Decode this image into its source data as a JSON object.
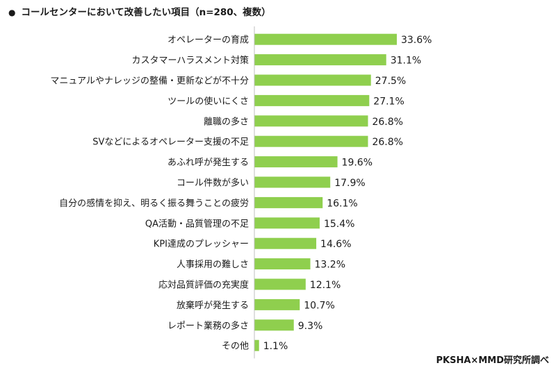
{
  "title": "コールセンターにおいて改善したい項目（n=280、複数）",
  "source": "PKSHA×MMD研究所調べ",
  "colors": {
    "bar": "#8fcf4e",
    "axis": "#bfbfbf",
    "text": "#1a1a1a"
  },
  "chart_data": {
    "type": "bar",
    "orientation": "horizontal",
    "categories": [
      "オペレーターの育成",
      "カスタマーハラスメント対策",
      "マニュアルやナレッジの整備・更新などが不十分",
      "ツールの使いにくさ",
      "離職の多さ",
      "SVなどによるオペレーター支援の不足",
      "あふれ呼が発生する",
      "コール件数が多い",
      "自分の感情を抑え、明るく振る舞うことの疲労",
      "QA活動・品質管理の不足",
      "KPI達成のプレッシャー",
      "人事採用の難しさ",
      "応対品質評価の充実度",
      "放棄呼が発生する",
      "レポート業務の多さ",
      "その他"
    ],
    "values": [
      33.6,
      31.1,
      27.5,
      27.1,
      26.8,
      26.8,
      19.6,
      17.9,
      16.1,
      15.4,
      14.6,
      13.2,
      12.1,
      10.7,
      9.3,
      1.1
    ],
    "value_labels": [
      "33.6%",
      "31.1%",
      "27.5%",
      "27.1%",
      "26.8%",
      "26.8%",
      "19.6%",
      "17.9%",
      "16.1%",
      "15.4%",
      "14.6%",
      "13.2%",
      "12.1%",
      "10.7%",
      "9.3%",
      "1.1%"
    ],
    "xlim": [
      0,
      100
    ],
    "grid": false,
    "legend": "none"
  }
}
